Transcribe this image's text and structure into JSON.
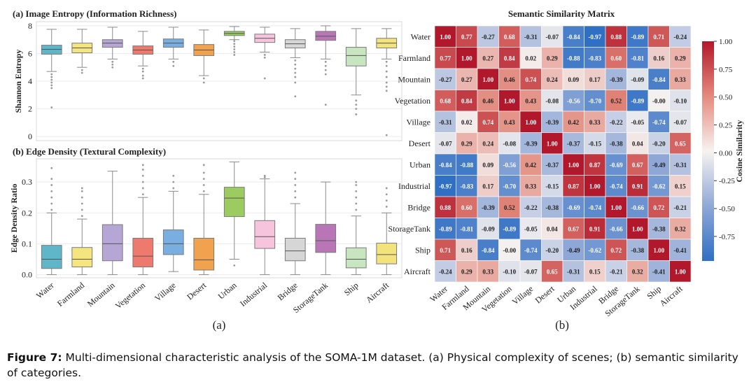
{
  "caption": {
    "label": "Figure 7:",
    "text": "Multi-dimensional characteristic analysis of the SOMA-1M dataset. (a) Physical complexity of scenes; (b) semantic similarity of categories."
  },
  "panel_labels": {
    "a": "(a)",
    "b": "(b)"
  },
  "colors": {
    "Water": "#5fb6c9",
    "Farmland": "#f4e57f",
    "Mountain": "#b6a6d6",
    "Vegetation": "#ee7a6e",
    "Village": "#78aee0",
    "Desert": "#f1a24e",
    "Urban": "#9ccc5f",
    "Industrial": "#f6c4dc",
    "Bridge": "#d6d6d6",
    "StorageTank": "#b976b6",
    "Ship": "#c7e6c0",
    "Aircraft": "#f3e37d"
  },
  "chart_data": [
    {
      "type": "box",
      "title": "(a) Image Entropy (Information Richness)",
      "ylabel": "Shannon Entropy",
      "ylim": [
        -0.3,
        8.3
      ],
      "yticks": [
        0,
        2,
        4,
        6,
        8
      ],
      "categories": [
        "Water",
        "Farmland",
        "Mountain",
        "Vegetation",
        "Village",
        "Desert",
        "Urban",
        "Industrial",
        "Bridge",
        "StorageTank",
        "Ship",
        "Aircraft"
      ],
      "boxes": [
        {
          "min": 4.7,
          "q1": 5.95,
          "median": 6.3,
          "q3": 6.6,
          "max": 7.75,
          "outliers": [
            4.5,
            4.3,
            4.1,
            3.9,
            3.7,
            3.5,
            2.1
          ]
        },
        {
          "min": 5.0,
          "q1": 6.05,
          "median": 6.4,
          "q3": 6.75,
          "max": 7.75,
          "outliers": [
            4.8,
            4.6
          ]
        },
        {
          "min": 5.6,
          "q1": 6.45,
          "median": 6.75,
          "q3": 7.0,
          "max": 7.9,
          "outliers": [
            5.4,
            5.2,
            5.0
          ]
        },
        {
          "min": 5.1,
          "q1": 5.95,
          "median": 6.25,
          "q3": 6.55,
          "max": 7.6,
          "outliers": [
            4.9,
            4.7,
            4.4,
            4.2
          ]
        },
        {
          "min": 5.6,
          "q1": 6.45,
          "median": 6.75,
          "q3": 7.05,
          "max": 7.9,
          "outliers": [
            5.4,
            5.1
          ]
        },
        {
          "min": 4.4,
          "q1": 5.85,
          "median": 6.25,
          "q3": 6.65,
          "max": 7.7,
          "outliers": [
            4.2,
            3.9
          ]
        },
        {
          "min": 7.0,
          "q1": 7.3,
          "median": 7.45,
          "q3": 7.6,
          "max": 7.95,
          "outliers": [
            6.9,
            6.7,
            6.5,
            6.3,
            6.1,
            5.9
          ]
        },
        {
          "min": 6.1,
          "q1": 6.8,
          "median": 7.1,
          "q3": 7.4,
          "max": 7.9,
          "outliers": [
            5.9,
            5.7,
            4.2
          ]
        },
        {
          "min": 5.7,
          "q1": 6.4,
          "median": 6.7,
          "q3": 7.0,
          "max": 7.8,
          "outliers": [
            5.5,
            5.2,
            4.9,
            4.6,
            4.3,
            3.9,
            2.9
          ]
        },
        {
          "min": 5.6,
          "q1": 6.95,
          "median": 7.25,
          "q3": 7.6,
          "max": 8.0,
          "outliers": [
            5.4,
            5.1,
            4.8,
            4.5,
            2.3
          ]
        },
        {
          "min": 3.0,
          "q1": 5.1,
          "median": 5.85,
          "q3": 6.45,
          "max": 7.8,
          "outliers": [
            2.6,
            2.3,
            2.0,
            1.6
          ]
        },
        {
          "min": 5.6,
          "q1": 6.4,
          "median": 6.75,
          "q3": 7.1,
          "max": 7.8,
          "outliers": [
            5.4,
            5.1,
            4.7,
            4.3,
            3.9,
            3.6,
            3.3,
            0.1
          ]
        }
      ]
    },
    {
      "type": "box",
      "title": "(b) Edge Density (Textural Complexity)",
      "ylabel": "Edge Density Ratio",
      "ylim": [
        -0.01,
        0.375
      ],
      "yticks": [
        0.0,
        0.1,
        0.2,
        0.3
      ],
      "ytick_labels": [
        "0.0",
        "0.1",
        "0.2",
        "0.3"
      ],
      "categories": [
        "Water",
        "Farmland",
        "Mountain",
        "Vegetation",
        "Village",
        "Desert",
        "Urban",
        "Industrial",
        "Bridge",
        "StorageTank",
        "Ship",
        "Aircraft"
      ],
      "boxes": [
        {
          "min": 0.0,
          "q1": 0.02,
          "median": 0.05,
          "q3": 0.095,
          "max": 0.2,
          "outliers": [
            0.21,
            0.23,
            0.25,
            0.27,
            0.29,
            0.31,
            0.345
          ]
        },
        {
          "min": 0.0,
          "q1": 0.025,
          "median": 0.05,
          "q3": 0.088,
          "max": 0.18,
          "outliers": [
            0.19,
            0.21,
            0.23,
            0.25,
            0.27,
            0.28
          ]
        },
        {
          "min": 0.0,
          "q1": 0.045,
          "median": 0.1,
          "q3": 0.162,
          "max": 0.335,
          "outliers": []
        },
        {
          "min": 0.0,
          "q1": 0.025,
          "median": 0.06,
          "q3": 0.118,
          "max": 0.25,
          "outliers": [
            0.26,
            0.28,
            0.3,
            0.32,
            0.34,
            0.355
          ]
        },
        {
          "min": 0.01,
          "q1": 0.065,
          "median": 0.1,
          "q3": 0.145,
          "max": 0.27,
          "outliers": [
            0.28,
            0.3,
            0.32
          ]
        },
        {
          "min": 0.0,
          "q1": 0.015,
          "median": 0.048,
          "q3": 0.118,
          "max": 0.26,
          "outliers": [
            0.27,
            0.29,
            0.31,
            0.33,
            0.355
          ]
        },
        {
          "min": 0.05,
          "q1": 0.188,
          "median": 0.248,
          "q3": 0.283,
          "max": 0.365,
          "outliers": [
            0.03
          ]
        },
        {
          "min": 0.0,
          "q1": 0.085,
          "median": 0.123,
          "q3": 0.175,
          "max": 0.31,
          "outliers": [
            0.315,
            0.32
          ]
        },
        {
          "min": 0.0,
          "q1": 0.045,
          "median": 0.077,
          "q3": 0.118,
          "max": 0.23,
          "outliers": [
            0.25,
            0.27,
            0.29,
            0.31,
            0.33
          ]
        },
        {
          "min": 0.0,
          "q1": 0.072,
          "median": 0.11,
          "q3": 0.163,
          "max": 0.3,
          "outliers": []
        },
        {
          "min": 0.0,
          "q1": 0.022,
          "median": 0.05,
          "q3": 0.087,
          "max": 0.19,
          "outliers": [
            0.21,
            0.23,
            0.25,
            0.27,
            0.29,
            0.3
          ]
        },
        {
          "min": 0.0,
          "q1": 0.035,
          "median": 0.065,
          "q3": 0.102,
          "max": 0.2,
          "outliers": [
            0.22,
            0.24,
            0.26,
            0.28
          ]
        }
      ]
    },
    {
      "type": "heatmap",
      "title": "Semantic Similarity Matrix",
      "labels": [
        "Water",
        "Farmland",
        "Mountain",
        "Vegetation",
        "Village",
        "Desert",
        "Urban",
        "Industrial",
        "Bridge",
        "StorageTank",
        "Ship",
        "Aircraft"
      ],
      "matrix": [
        [
          "1.00",
          "0.77",
          "-0.27",
          "0.68",
          "-0.31",
          "-0.07",
          "-0.84",
          "-0.97",
          "0.88",
          "-0.89",
          "0.71",
          "-0.24"
        ],
        [
          "0.77",
          "1.00",
          "0.27",
          "0.84",
          "0.02",
          "0.29",
          "-0.88",
          "-0.83",
          "0.60",
          "-0.81",
          "0.16",
          "0.29"
        ],
        [
          "-0.27",
          "0.27",
          "1.00",
          "0.46",
          "0.74",
          "0.24",
          "0.09",
          "0.17",
          "-0.39",
          "-0.09",
          "-0.84",
          "0.33"
        ],
        [
          "0.68",
          "0.84",
          "0.46",
          "1.00",
          "0.43",
          "-0.08",
          "-0.56",
          "-0.70",
          "0.52",
          "-0.89",
          "-0.00",
          "-0.10"
        ],
        [
          "-0.31",
          "0.02",
          "0.74",
          "0.43",
          "1.00",
          "-0.39",
          "0.42",
          "0.33",
          "-0.22",
          "-0.05",
          "-0.74",
          "-0.07"
        ],
        [
          "-0.07",
          "0.29",
          "0.24",
          "-0.08",
          "-0.39",
          "1.00",
          "-0.37",
          "-0.15",
          "-0.38",
          "0.04",
          "-0.20",
          "0.65"
        ],
        [
          "-0.84",
          "-0.88",
          "0.09",
          "-0.56",
          "0.42",
          "-0.37",
          "1.00",
          "0.87",
          "-0.69",
          "0.67",
          "-0.49",
          "-0.31"
        ],
        [
          "-0.97",
          "-0.83",
          "0.17",
          "-0.70",
          "0.33",
          "-0.15",
          "0.87",
          "1.00",
          "-0.74",
          "0.91",
          "-0.62",
          "0.15"
        ],
        [
          "0.88",
          "0.60",
          "-0.39",
          "0.52",
          "-0.22",
          "-0.38",
          "-0.69",
          "-0.74",
          "1.00",
          "-0.66",
          "0.72",
          "-0.21"
        ],
        [
          "-0.89",
          "-0.81",
          "-0.09",
          "-0.89",
          "-0.05",
          "0.04",
          "0.67",
          "0.91",
          "-0.66",
          "1.00",
          "-0.38",
          "0.32"
        ],
        [
          "0.71",
          "0.16",
          "-0.84",
          "-0.00",
          "-0.74",
          "-0.20",
          "-0.49",
          "-0.62",
          "0.72",
          "-0.38",
          "1.00",
          "-0.41"
        ],
        [
          "-0.24",
          "0.29",
          "0.33",
          "-0.10",
          "-0.07",
          "0.65",
          "-0.31",
          "0.15",
          "-0.21",
          "0.32",
          "-0.41",
          "1.00"
        ]
      ],
      "colorbar": {
        "label": "Cosine Similarity",
        "range": [
          -0.97,
          1.0
        ],
        "ticks": [
          "1.00",
          "0.75",
          "0.50",
          "0.25",
          "0.00",
          "-0.25",
          "-0.50",
          "-0.75"
        ],
        "tick_values": [
          1.0,
          0.75,
          0.5,
          0.25,
          0.0,
          -0.25,
          -0.5,
          -0.75
        ]
      }
    }
  ]
}
